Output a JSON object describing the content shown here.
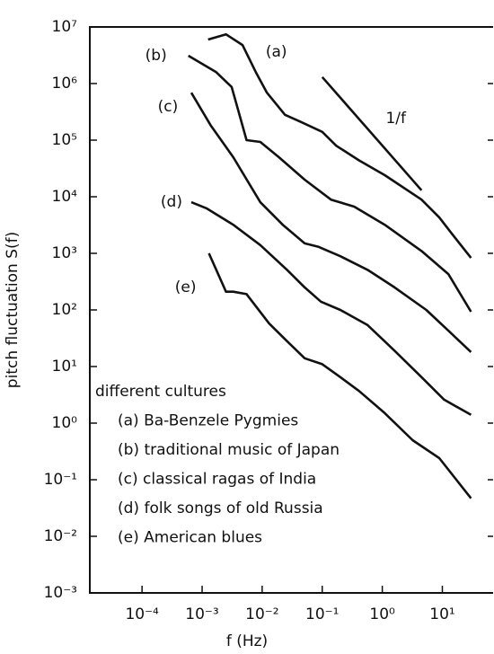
{
  "chart_data": {
    "type": "line",
    "x_log": true,
    "y_log": true,
    "xlabel": "f  (Hz)",
    "ylabel": "pitch fluctuation S(f)",
    "xlim": [
      1.35e-05,
      70
    ],
    "ylim": [
      0.001,
      10000000
    ],
    "xticks": [
      {
        "value": 0.0001,
        "label": "10⁻⁴"
      },
      {
        "value": 0.001,
        "label": "10⁻³"
      },
      {
        "value": 0.01,
        "label": "10⁻²"
      },
      {
        "value": 0.1,
        "label": "10⁻¹"
      },
      {
        "value": 1,
        "label": "10⁰"
      },
      {
        "value": 10,
        "label": "10¹"
      }
    ],
    "yticks": [
      {
        "value": 0.001,
        "label": "10⁻³"
      },
      {
        "value": 0.01,
        "label": "10⁻²"
      },
      {
        "value": 0.1,
        "label": "10⁻¹"
      },
      {
        "value": 1,
        "label": "10⁰"
      },
      {
        "value": 10,
        "label": "10¹"
      },
      {
        "value": 100,
        "label": "10²"
      },
      {
        "value": 1000,
        "label": "10³"
      },
      {
        "value": 10000,
        "label": "10⁴"
      },
      {
        "value": 100000,
        "label": "10⁵"
      },
      {
        "value": 1000000,
        "label": "10⁶"
      },
      {
        "value": 10000000,
        "label": "10⁷"
      }
    ],
    "series": [
      {
        "name": "(a)",
        "color": "#111111",
        "x": [
          0.00126,
          0.0025,
          0.0047,
          0.0078,
          0.012,
          0.024,
          0.044,
          0.1,
          0.17,
          0.41,
          1.1,
          4.5,
          8.9,
          15,
          30
        ],
        "values": [
          6000000,
          7400000,
          4800000,
          1600000,
          690000,
          280000,
          210000,
          140000,
          80000,
          44000,
          24000,
          8900,
          4300,
          2100,
          830
        ]
      },
      {
        "name": "(b)",
        "color": "#111111",
        "x": [
          0.00059,
          0.0017,
          0.0031,
          0.0039,
          0.0055,
          0.0093,
          0.019,
          0.051,
          0.14,
          0.34,
          1.1,
          4.5,
          12.6,
          30
        ],
        "values": [
          3100000,
          1600000,
          870000,
          370000,
          100000,
          93000,
          50000,
          20000,
          8900,
          6700,
          3200,
          1100,
          430,
          93
        ]
      },
      {
        "name": "(c)",
        "color": "#111111",
        "x": [
          0.00066,
          0.0014,
          0.0033,
          0.0093,
          0.022,
          0.051,
          0.087,
          0.2,
          0.57,
          1.6,
          5.4,
          12.6,
          30
        ],
        "values": [
          690000,
          180000,
          50000,
          8000,
          3200,
          1500,
          1300,
          890,
          510,
          250,
          100,
          43,
          18
        ]
      },
      {
        "name": "(d)",
        "color": "#111111",
        "x": [
          0.00066,
          0.0012,
          0.0033,
          0.0093,
          0.026,
          0.051,
          0.095,
          0.2,
          0.57,
          1.6,
          4.5,
          10.7,
          30
        ],
        "values": [
          8000,
          6200,
          3200,
          1400,
          510,
          250,
          140,
          100,
          54,
          19,
          6.5,
          2.6,
          1.4
        ]
      },
      {
        "name": "(e)",
        "color": "#111111",
        "x": [
          0.0013,
          0.0025,
          0.0033,
          0.0055,
          0.013,
          0.026,
          0.051,
          0.1,
          0.2,
          0.41,
          1.1,
          3.2,
          8.9,
          30
        ],
        "values": [
          1000,
          210,
          210,
          190,
          58,
          28,
          14,
          11,
          6.5,
          3.7,
          1.5,
          0.5,
          0.24,
          0.047
        ]
      },
      {
        "name": "1/f",
        "color": "#111111",
        "x": [
          0.1,
          4.5
        ],
        "values": [
          1300000,
          13000
        ]
      }
    ],
    "annotations": [
      "different cultures",
      "(a) Ba-Benzele Pygmies",
      "(b) traditional music of Japan",
      "(c) classical ragas of India",
      "(d) folk songs of old Russia",
      "(e) American blues"
    ]
  }
}
